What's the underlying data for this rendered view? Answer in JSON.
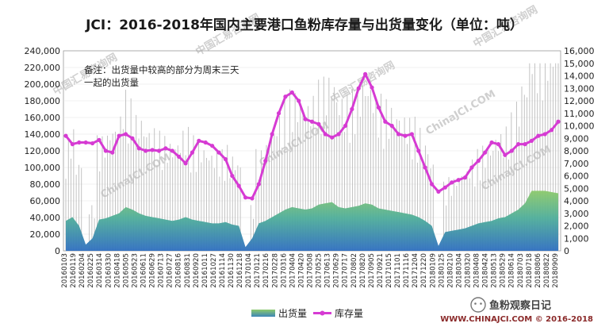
{
  "chart_data": {
    "type": "bar+line",
    "title": "JCI：2016-2018年国内主要港口鱼粉库存量与出货量变化（单位：吨）",
    "annotation": [
      "备注：出货量中较高的部分为周末三天",
      "一起的出货量"
    ],
    "legend": {
      "placement": "bottom",
      "items": [
        "出货量",
        "库存量"
      ]
    },
    "y_left": {
      "ylim": [
        0,
        240000
      ],
      "ticks": [
        "0",
        "20,000",
        "40,000",
        "60,000",
        "80,000",
        "100,000",
        "120,000",
        "140,000",
        "160,000",
        "180,000",
        "200,000",
        "220,000",
        "240,000"
      ]
    },
    "y_right": {
      "ylim": [
        0,
        16000
      ],
      "ticks": [
        "0",
        "1,000",
        "2,000",
        "3,000",
        "4,000",
        "5,000",
        "6,000",
        "7,000",
        "8,000",
        "9,000",
        "10,000",
        "11,000",
        "12,000",
        "13,000",
        "14,000",
        "15,000",
        "16,000"
      ]
    },
    "x_ticks": [
      "20160103",
      "20160119",
      "20160204",
      "20160225",
      "20160314",
      "20160330",
      "20160418",
      "20160505",
      "20160523",
      "20160611",
      "20160629",
      "20160713",
      "20160727",
      "20160816",
      "20160831",
      "20160920",
      "20161011",
      "20161027",
      "20161114",
      "20161130",
      "20161218",
      "20170104",
      "20170121",
      "20170216",
      "20170228",
      "20170316",
      "20170404",
      "20170420",
      "20170508",
      "20170525",
      "20170613",
      "20170629",
      "20170717",
      "20170802",
      "20170820",
      "20170905",
      "20170921",
      "20171015",
      "20171101",
      "20171116",
      "20171204",
      "20171220",
      "20180109",
      "20180125",
      "20180210",
      "20180304",
      "20180320",
      "20180408",
      "20180424",
      "20180513",
      "20180529",
      "20180614",
      "20180703",
      "20180718",
      "20180806",
      "20180822",
      "20180909"
    ],
    "series": [
      {
        "name": "库存量",
        "axis": "left",
        "values": [
          138000,
          128000,
          130000,
          130000,
          129000,
          133000,
          120000,
          118000,
          138000,
          140000,
          135000,
          123000,
          120000,
          121000,
          120000,
          123000,
          120000,
          113000,
          105000,
          118000,
          132000,
          130000,
          126000,
          118000,
          110000,
          90000,
          78000,
          64000,
          63000,
          80000,
          108000,
          140000,
          165000,
          185000,
          190000,
          180000,
          158000,
          155000,
          152000,
          140000,
          136000,
          140000,
          150000,
          170000,
          195000,
          212000,
          196000,
          172000,
          155000,
          150000,
          140000,
          138000,
          140000,
          120000,
          100000,
          80000,
          71000,
          76000,
          82000,
          85000,
          88000,
          100000,
          108000,
          118000,
          130000,
          128000,
          115000,
          120000,
          128000,
          128000,
          132000,
          138000,
          140000,
          145000,
          155000
        ]
      },
      {
        "name": "出货量",
        "axis": "right",
        "values": [
          2400,
          2700,
          2000,
          500,
          1000,
          2500,
          2600,
          2800,
          3000,
          3500,
          3300,
          3000,
          2800,
          2700,
          2600,
          2500,
          2400,
          2500,
          2700,
          2500,
          2400,
          2300,
          2200,
          2200,
          2300,
          2100,
          2000,
          300,
          1000,
          2200,
          2400,
          2700,
          3000,
          3300,
          3500,
          3400,
          3300,
          3400,
          3700,
          3800,
          3900,
          3500,
          3400,
          3500,
          3600,
          3800,
          3700,
          3400,
          3300,
          3200,
          3100,
          3000,
          2900,
          2700,
          2400,
          2000,
          400,
          1500,
          1600,
          1700,
          1800,
          2000,
          2200,
          2300,
          2400,
          2600,
          2700,
          3000,
          3300,
          3800,
          4800,
          4800,
          4800,
          4700,
          4600
        ]
      }
    ]
  },
  "watermarks": [
    "中国汇易咨询网",
    "ChinaJCI.COM"
  ],
  "footer": {
    "brand": "鱼粉观察日记",
    "site": "WWW.CHINAJCI.COM © 2016-2018"
  }
}
